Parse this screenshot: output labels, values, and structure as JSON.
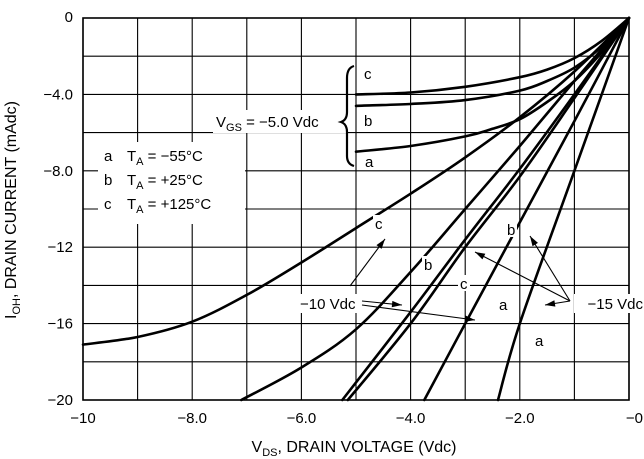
{
  "chart_data": {
    "type": "line",
    "xlabel": {
      "main": "V",
      "sub": "DS",
      "rest": ", DRAIN VOLTAGE (Vdc)"
    },
    "ylabel": {
      "main": "I",
      "sub": "OH",
      "rest": ", DRAIN CURRENT (mAdc)"
    },
    "xlim": [
      -10,
      0
    ],
    "ylim": [
      -20,
      0
    ],
    "grid": true,
    "x_ticks": [
      {
        "value": -10,
        "label": "−10"
      },
      {
        "value": -8,
        "label": "−8.0"
      },
      {
        "value": -6,
        "label": "−6.0"
      },
      {
        "value": -4,
        "label": "−4.0"
      },
      {
        "value": -2,
        "label": "−2.0"
      },
      {
        "value": 0,
        "label": "−0"
      }
    ],
    "y_ticks": [
      {
        "value": 0,
        "label": "0"
      },
      {
        "value": -4,
        "label": "−4.0"
      },
      {
        "value": -8,
        "label": "−8.0"
      },
      {
        "value": -12,
        "label": "−12"
      },
      {
        "value": -16,
        "label": "−16"
      },
      {
        "value": -20,
        "label": "−20"
      }
    ],
    "legend": [
      {
        "key": "a",
        "text": "T",
        "sub": "A",
        "value": " = −55°C"
      },
      {
        "key": "b",
        "text": "T",
        "sub": "A",
        "value": " = +25°C"
      },
      {
        "key": "c",
        "text": "T",
        "sub": "A",
        "value": " = +125°C"
      }
    ],
    "vgs_label": {
      "main": "V",
      "sub": "GS",
      "rest": " = −5.0 Vdc"
    },
    "vgs_letters": [
      "c",
      "b",
      "a"
    ],
    "annotations": {
      "minus10": "−10 Vdc",
      "minus15": "−15 Vdc",
      "letters10": [
        "c",
        "b",
        "a"
      ],
      "letters15": [
        "b",
        "c",
        "a",
        "a"
      ]
    },
    "series": [
      {
        "group": "VGS=-5.0 Vdc",
        "curve": "c",
        "x": [
          0,
          -0.5,
          -1,
          -1.5,
          -2,
          -3,
          -4,
          -5
        ],
        "y": [
          0,
          -1.2,
          -2.1,
          -2.7,
          -3.1,
          -3.6,
          -3.9,
          -4.0
        ]
      },
      {
        "group": "VGS=-5.0 Vdc",
        "curve": "b",
        "x": [
          0,
          -0.5,
          -1,
          -1.5,
          -2,
          -3,
          -4,
          -5
        ],
        "y": [
          0,
          -1.5,
          -2.6,
          -3.3,
          -3.8,
          -4.3,
          -4.5,
          -4.6
        ]
      },
      {
        "group": "VGS=-5.0 Vdc",
        "curve": "a",
        "x": [
          0,
          -0.5,
          -1,
          -1.5,
          -2,
          -2.5,
          -3,
          -4,
          -5
        ],
        "y": [
          0,
          -1.8,
          -3.3,
          -4.4,
          -5.3,
          -5.8,
          -6.2,
          -6.7,
          -7.0
        ]
      },
      {
        "group": "VGS=-10 Vdc",
        "curve": "c",
        "x": [
          0,
          -1,
          -2,
          -3,
          -4,
          -5,
          -6,
          -7,
          -8,
          -9,
          -10
        ],
        "y": [
          0,
          -2.8,
          -5.2,
          -7.3,
          -9.2,
          -11.0,
          -12.8,
          -14.5,
          -15.9,
          -16.7,
          -17.1
        ]
      },
      {
        "group": "VGS=-10 Vdc",
        "curve": "b",
        "x": [
          0,
          -1,
          -2,
          -3,
          -4,
          -5,
          -6,
          -7.1
        ],
        "y": [
          0,
          -3.3,
          -6.7,
          -10.0,
          -13.3,
          -16.3,
          -18.3,
          -20.0
        ]
      },
      {
        "group": "VGS=-10 Vdc",
        "curve": "a",
        "x": [
          0,
          -1,
          -2,
          -3,
          -4,
          -5.25
        ],
        "y": [
          0,
          -4.0,
          -7.9,
          -11.6,
          -15.4,
          -20.0
        ]
      },
      {
        "group": "VGS=-15 Vdc",
        "curve": "c",
        "x": [
          0,
          -1,
          -2,
          -3,
          -4,
          -5.15
        ],
        "y": [
          0,
          -4.2,
          -8.3,
          -12.0,
          -16.0,
          -20.0
        ]
      },
      {
        "group": "VGS=-15 Vdc",
        "curve": "b",
        "x": [
          0,
          -1,
          -2,
          -3,
          -3.75
        ],
        "y": [
          0,
          -5.4,
          -10.7,
          -16.0,
          -20.0
        ]
      },
      {
        "group": "VGS=-15 Vdc",
        "curve": "a",
        "x": [
          0,
          -1,
          -2,
          -2.4
        ],
        "y": [
          0,
          -8.0,
          -16.0,
          -20.0
        ]
      }
    ]
  }
}
